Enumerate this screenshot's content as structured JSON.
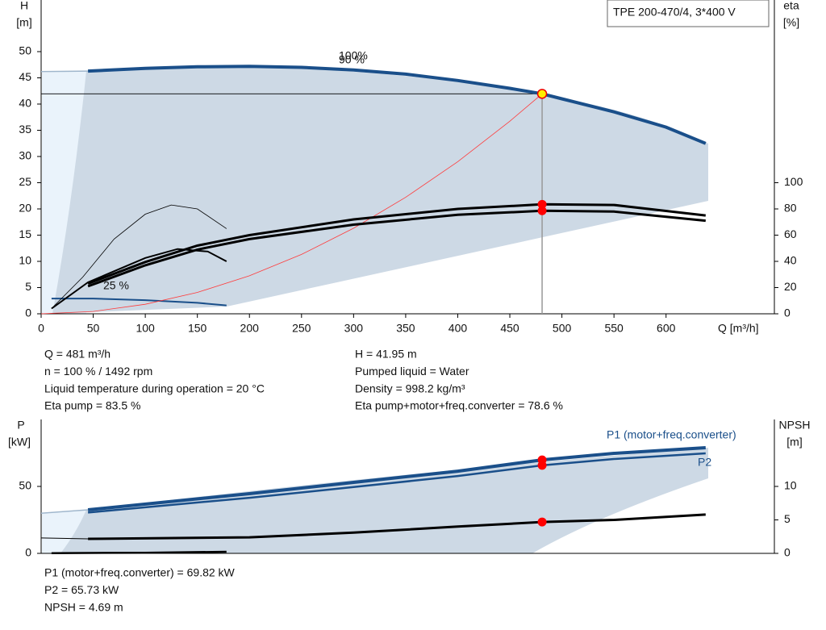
{
  "chart_data": [
    {
      "type": "line",
      "title": "TPE 200-470/4, 3*400 V",
      "y_label": "H",
      "y_unit": "[m]",
      "y2_label": "eta",
      "y2_unit": "[%]",
      "x_label": "Q [m³/h]",
      "xlim": [
        0,
        704
      ],
      "xticks": [
        0,
        50,
        100,
        150,
        200,
        250,
        300,
        350,
        400,
        450,
        500,
        550,
        600
      ],
      "ylim": [
        0,
        60
      ],
      "yticks": [
        0,
        5,
        10,
        15,
        20,
        25,
        30,
        35,
        40,
        45,
        50
      ],
      "y2lim": [
        0,
        240
      ],
      "y2ticks": [
        0,
        20,
        40,
        60,
        80,
        100
      ],
      "annotations": [
        "100%",
        "90 %",
        "25 %"
      ],
      "series": [
        {
          "color": "#9fb6cc",
          "line_width": 1.5,
          "x": [
            0,
            45
          ],
          "values": [
            46.2,
            46.3
          ]
        },
        {
          "color": "#1a4f8a",
          "line_width": 4,
          "x": [
            45,
            100,
            150,
            200,
            250,
            300,
            350,
            400,
            450,
            481,
            500,
            550,
            600,
            638
          ],
          "values": [
            46.3,
            46.8,
            47.1,
            47.2,
            47.0,
            46.5,
            45.7,
            44.5,
            43.0,
            41.95,
            41.0,
            38.5,
            35.6,
            32.5
          ]
        },
        {
          "color": "#1a4f8a",
          "line_width": 2,
          "x": [
            10,
            50,
            100,
            150,
            178
          ],
          "values": [
            2.9,
            2.9,
            2.6,
            2.1,
            1.6
          ]
        },
        {
          "color": "#ff3b3b",
          "line_width": 0.8,
          "x": [
            0,
            50,
            100,
            150,
            200,
            250,
            300,
            350,
            400,
            450,
            481
          ],
          "values": [
            0,
            0.45,
            1.81,
            4.08,
            7.25,
            11.33,
            16.32,
            22.21,
            29.01,
            36.72,
            41.95
          ]
        },
        {
          "color": "#000",
          "line_width": 3,
          "axis": "y2",
          "x": [
            45,
            100,
            150,
            200,
            300,
            400,
            481,
            550,
            638
          ],
          "values": [
            23,
            39.5,
            52,
            60,
            72,
            80,
            83.5,
            83,
            75
          ]
        },
        {
          "color": "#000",
          "line_width": 3,
          "axis": "y2",
          "x": [
            45,
            100,
            150,
            200,
            300,
            400,
            481,
            550,
            638
          ],
          "values": [
            21,
            37,
            49,
            57,
            68,
            75.5,
            78.6,
            78,
            71
          ]
        },
        {
          "color": "#000",
          "line_width": 0.8,
          "axis": "y2",
          "x": [
            10,
            40,
            70,
            100,
            125,
            150,
            178
          ],
          "values": [
            4,
            28,
            57,
            76,
            83,
            80,
            65
          ]
        },
        {
          "color": "#000",
          "line_width": 2,
          "axis": "y2",
          "x": [
            10,
            45,
            100,
            131,
            160,
            178
          ],
          "values": [
            4,
            24,
            42.6,
            49.4,
            47.5,
            40
          ]
        }
      ],
      "markers": [
        {
          "x": 481,
          "value": 41.95,
          "color": "#ffee00"
        },
        {
          "x": 481,
          "value": 83.5,
          "axis": "y2",
          "color": "#ff0000"
        },
        {
          "x": 481,
          "value": 78.6,
          "axis": "y2",
          "color": "#ff0000"
        }
      ]
    },
    {
      "type": "line",
      "y_label": "P",
      "y_unit": "[kW]",
      "y2_label": "NPSH",
      "y2_unit": "[m]",
      "xlim": [
        0,
        704
      ],
      "ylim": [
        0,
        100
      ],
      "yticks": [
        0,
        50
      ],
      "y2lim": [
        0,
        20
      ],
      "y2ticks": [
        0,
        5,
        10
      ],
      "series": [
        {
          "color": "#9fb6cc",
          "line_width": 1.5,
          "x": [
            0,
            45
          ],
          "values": [
            30,
            32.5
          ]
        },
        {
          "name": "P1 (motor+freq.converter)",
          "color": "#1a4f8a",
          "line_width": 4,
          "x": [
            45,
            200,
            300,
            400,
            481,
            550,
            638
          ],
          "values": [
            32.5,
            44.6,
            53,
            61.4,
            69.82,
            74.7,
            78.9
          ]
        },
        {
          "name": "P2",
          "color": "#1a4f8a",
          "line_width": 2.5,
          "x": [
            45,
            200,
            300,
            400,
            481,
            550,
            638
          ],
          "values": [
            30.5,
            41.5,
            49.5,
            57.8,
            65.73,
            70.5,
            74.7
          ]
        },
        {
          "color": "#000",
          "line_width": 1,
          "axis": "y2",
          "x": [
            0,
            45
          ],
          "values": [
            2.3,
            2.17
          ]
        },
        {
          "color": "#000",
          "line_width": 3,
          "axis": "y2",
          "x": [
            45,
            200,
            300,
            400,
            481,
            550,
            638
          ],
          "values": [
            2.17,
            2.4,
            3.1,
            4.0,
            4.69,
            5.0,
            5.8
          ]
        },
        {
          "color": "#000",
          "line_width": 2.5,
          "x": [
            10,
            100,
            178
          ],
          "values": [
            0.2,
            0.5,
            1.2
          ]
        }
      ],
      "markers": [
        {
          "x": 481,
          "value": 69.82,
          "color": "#ff0000"
        },
        {
          "x": 481,
          "value": 65.73,
          "color": "#ff0000"
        },
        {
          "x": 481,
          "value": 4.69,
          "axis": "y2",
          "color": "#ff0000"
        }
      ]
    }
  ],
  "info": {
    "top_left": [
      "Q = 481 m³/h",
      "n = 100 % / 1492 rpm",
      "Liquid temperature during operation = 20 °C",
      "Eta pump = 83.5 %"
    ],
    "top_right": [
      "H = 41.95 m",
      "Pumped liquid = Water",
      "Density = 998.2 kg/m³",
      "Eta pump+motor+freq.converter = 78.6 %"
    ],
    "bottom": [
      "P1 (motor+freq.converter) = 69.82 kW",
      "P2 = 65.73 kW",
      "NPSH = 4.69 m"
    ]
  }
}
